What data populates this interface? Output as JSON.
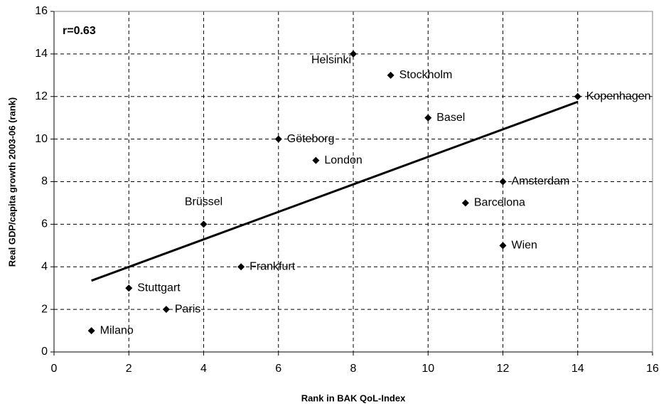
{
  "chart_data": {
    "type": "scatter",
    "annotation": "r=0.63",
    "xlabel": "Rank in BAK QoL-Index",
    "ylabel": "Real GDP/capita growth 2003-06 (rank)",
    "labels": [
      "Helsinki",
      "Stockholm",
      "Kopenhagen",
      "Basel",
      "Göteborg",
      "London",
      "Amsterdam",
      "Barcelona",
      "Brüssel",
      "Wien",
      "Frankfurt",
      "Stuttgart",
      "Paris",
      "Milano"
    ],
    "x": [
      8,
      9,
      14,
      10,
      6,
      7,
      12,
      11,
      4,
      12,
      5,
      2,
      3,
      1
    ],
    "values": [
      14,
      13,
      12,
      11,
      10,
      9,
      8,
      7,
      6,
      5,
      4,
      3,
      2,
      1
    ],
    "color": "#000000",
    "trendline": {
      "x": [
        1,
        14
      ],
      "values": [
        3.35,
        11.75
      ]
    },
    "xlim": [
      0,
      16
    ],
    "xticks": [
      0,
      2,
      4,
      6,
      8,
      10,
      12,
      14,
      16
    ],
    "ylim": [
      0,
      16
    ],
    "yticks": [
      0,
      2,
      4,
      6,
      8,
      10,
      12,
      14,
      16
    ],
    "grid": true
  }
}
